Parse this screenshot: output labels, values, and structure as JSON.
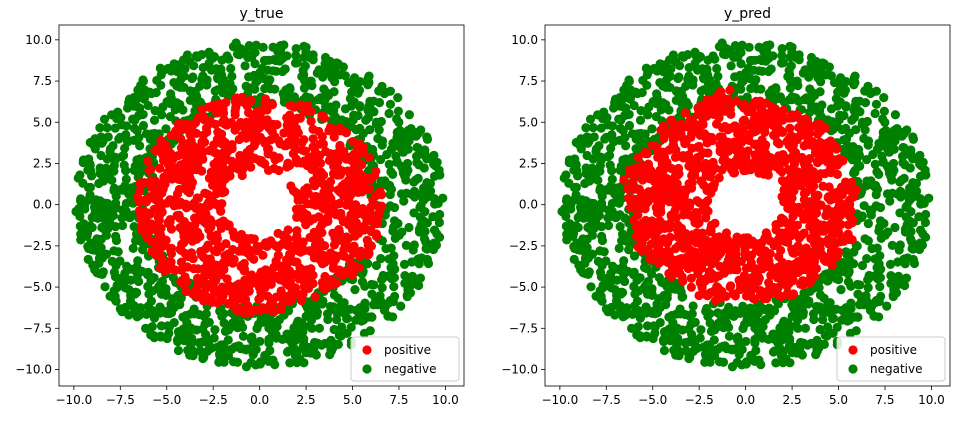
{
  "chart_data": [
    {
      "type": "scatter",
      "title": "y_true",
      "xlabel": "",
      "ylabel": "",
      "xlim": [
        -10.8,
        11.0
      ],
      "ylim": [
        -11.0,
        10.9
      ],
      "xticks": [
        -10.0,
        -7.5,
        -5.0,
        -2.5,
        0.0,
        2.5,
        5.0,
        7.5,
        10.0
      ],
      "yticks": [
        -10.0,
        -7.5,
        -5.0,
        -2.5,
        0.0,
        2.5,
        5.0,
        7.5,
        10.0
      ],
      "xtick_labels": [
        "−10.0",
        "−7.5",
        "−5.0",
        "−2.5",
        "0.0",
        "2.5",
        "5.0",
        "7.5",
        "10.0"
      ],
      "ytick_labels": [
        "−10.0",
        "−7.5",
        "−5.0",
        "−2.5",
        "0.0",
        "2.5",
        "5.0",
        "7.5",
        "10.0"
      ],
      "legend": {
        "placement": "lower-right",
        "entries": [
          "positive",
          "negative"
        ]
      },
      "series": [
        {
          "name": "positive",
          "color": "#ff0000",
          "distribution": "ring",
          "r_min": 2.0,
          "r_max": 6.6,
          "count": 1100,
          "seed": 11
        },
        {
          "name": "negative",
          "color": "#008000",
          "distribution": "ring",
          "r_min": 6.0,
          "r_max": 9.9,
          "count": 1300,
          "seed": 23
        }
      ]
    },
    {
      "type": "scatter",
      "title": "y_pred",
      "xlabel": "",
      "ylabel": "",
      "xlim": [
        -10.8,
        11.0
      ],
      "ylim": [
        -11.0,
        10.9
      ],
      "xticks": [
        -10.0,
        -7.5,
        -5.0,
        -2.5,
        0.0,
        2.5,
        5.0,
        7.5,
        10.0
      ],
      "yticks": [
        -10.0,
        -7.5,
        -5.0,
        -2.5,
        0.0,
        2.5,
        5.0,
        7.5,
        10.0
      ],
      "xtick_labels": [
        "−10.0",
        "−7.5",
        "−5.0",
        "−2.5",
        "0.0",
        "2.5",
        "5.0",
        "7.5",
        "10.0"
      ],
      "ytick_labels": [
        "−10.0",
        "−7.5",
        "−5.0",
        "−2.5",
        "0.0",
        "2.5",
        "5.0",
        "7.5",
        "10.0"
      ],
      "legend": {
        "placement": "lower-right",
        "entries": [
          "positive",
          "negative"
        ]
      },
      "series": [
        {
          "name": "positive",
          "color": "#ff0000",
          "distribution": "polygon-ring",
          "r_min": 2.0,
          "polygon_vertices": [
            [
              -1.0,
              7.1
            ],
            [
              4.3,
              4.8
            ],
            [
              6.0,
              1.0
            ],
            [
              5.8,
              -2.7
            ],
            [
              2.6,
              -5.6
            ],
            [
              -2.0,
              -5.9
            ],
            [
              -5.7,
              -3.1
            ],
            [
              -6.6,
              1.5
            ],
            [
              -4.6,
              4.9
            ]
          ],
          "count": 1150,
          "seed": 11
        },
        {
          "name": "negative",
          "color": "#008000",
          "distribution": "ring",
          "r_min": 6.0,
          "r_max": 9.9,
          "count": 1300,
          "seed": 23
        }
      ]
    }
  ]
}
